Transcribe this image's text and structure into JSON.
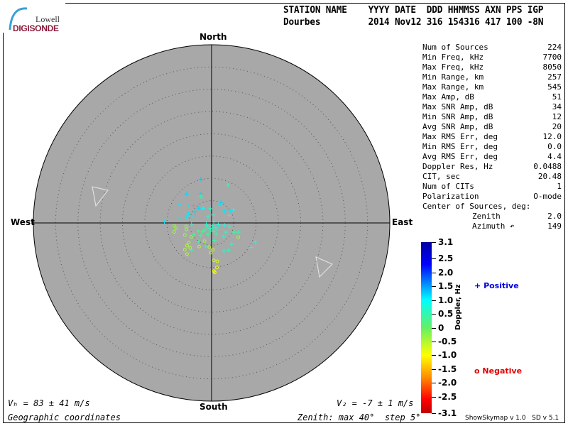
{
  "logo": {
    "line1": "Lowell",
    "line2": "DIGISONDE"
  },
  "header": {
    "labels": "STATION NAME    YYYY DATE  DDD HHMMSS AXN PPS IGP",
    "values": "Dourbes         2014 Nov12 316 154316 417 100 -8N"
  },
  "directions": {
    "north": "North",
    "south": "South",
    "east": "East",
    "west": "West"
  },
  "stats": [
    {
      "label": "Num of Sources",
      "value": "224"
    },
    {
      "label": "Min Freq, kHz",
      "value": "7700"
    },
    {
      "label": "Max Freq, kHz",
      "value": "8050"
    },
    {
      "label": "Min Range, km",
      "value": "257"
    },
    {
      "label": "Max Range, km",
      "value": "545"
    },
    {
      "label": "Max Amp, dB",
      "value": "51"
    },
    {
      "label": "Max SNR Amp, dB",
      "value": "34"
    },
    {
      "label": "Min SNR Amp, dB",
      "value": "12"
    },
    {
      "label": "Avg SNR Amp, dB",
      "value": "20"
    },
    {
      "label": "Max RMS Err, deg",
      "value": "12.0"
    },
    {
      "label": "Min RMS Err, deg",
      "value": "0.0"
    },
    {
      "label": "Avg RMS Err, deg",
      "value": "4.4"
    },
    {
      "label": "Doppler Res, Hz",
      "value": "0.0488"
    },
    {
      "label": "CIT, sec",
      "value": "20.48"
    },
    {
      "label": "Num of CITs",
      "value": "1"
    },
    {
      "label": "Polarization",
      "value": "O-mode"
    },
    {
      "label": "Center of Sources, deg:",
      "value": ""
    },
    {
      "label": "Zenith",
      "value": "2.0"
    },
    {
      "label": "Azimuth ↶",
      "value": "149"
    }
  ],
  "colorbar": {
    "title": "Doppler, Hz",
    "ticks": [
      "3.1",
      "2.5",
      "2.0",
      "1.5",
      "1.0",
      "0.5",
      "0",
      "-0.5",
      "-1.0",
      "-1.5",
      "-2.0",
      "-2.5",
      "-3.1"
    ],
    "range": [
      -3.1,
      3.1
    ]
  },
  "legend": {
    "positive": "Positive",
    "negative": "Negative",
    "positive_symbol": "+",
    "negative_symbol": "o",
    "positive_color": "#0000e0",
    "negative_color": "#e00000"
  },
  "footer": {
    "vh": "Vₕ = 83 ± 41 m/s",
    "vz": "V₂ = -7 ± 1 m/s",
    "coords": "Geographic coordinates",
    "zenith": "Zenith: max 40°  step 5°",
    "version": "ShowSkymap v 1.0   SD v 5.1"
  },
  "skymap": {
    "max_zenith_deg": 40,
    "step_deg": 5,
    "background": "#a8a8a8",
    "sources": [
      [
        -2.4,
        9.8,
        1.3,
        1
      ],
      [
        3.7,
        8.5,
        0.4,
        1
      ],
      [
        -5.6,
        6.5,
        1.2,
        1
      ],
      [
        -2.4,
        6.6,
        1.2,
        1
      ],
      [
        -2.4,
        5.9,
        0.5,
        1
      ],
      [
        -7.2,
        4.1,
        1.1,
        1
      ],
      [
        -5.1,
        3.9,
        1.1,
        1
      ],
      [
        -4.1,
        3.9,
        1.2,
        1
      ],
      [
        -2.9,
        3.3,
        1.2,
        1
      ],
      [
        -1.9,
        3.3,
        1.0,
        1
      ],
      [
        -0.3,
        3.2,
        0.6,
        1
      ],
      [
        2.1,
        4.6,
        1.2,
        1
      ],
      [
        1.9,
        4.2,
        1.1,
        1
      ],
      [
        2.9,
        2.7,
        1.1,
        1
      ],
      [
        4.3,
        2.7,
        1.1,
        1
      ],
      [
        4.9,
        2.9,
        1.0,
        1
      ],
      [
        4.0,
        1.7,
        1.0,
        1
      ],
      [
        -3.7,
        2.5,
        1.2,
        1
      ],
      [
        -5.2,
        2.0,
        1.1,
        1
      ],
      [
        -5.6,
        1.3,
        1.1,
        1
      ],
      [
        -4.1,
        1.6,
        1.1,
        1
      ],
      [
        0.4,
        1.8,
        0.9,
        1
      ],
      [
        -0.8,
        1.4,
        0.6,
        1
      ],
      [
        -7.2,
        0.9,
        1.1,
        1
      ],
      [
        -10.6,
        0.3,
        1.1,
        1
      ],
      [
        -4.5,
        -0.3,
        0.6,
        1
      ],
      [
        0.5,
        0.4,
        0.7,
        1
      ],
      [
        2.9,
        -0.5,
        0.8,
        1
      ],
      [
        4.0,
        -0.9,
        0.7,
        1
      ],
      [
        5.1,
        -2.1,
        0.4,
        1
      ],
      [
        6.1,
        -2.1,
        0.4,
        1
      ],
      [
        3.2,
        -2.1,
        0.5,
        1
      ],
      [
        2.7,
        -3.1,
        0.6,
        1
      ],
      [
        9.8,
        -4.3,
        0.9,
        1
      ],
      [
        8.9,
        -5.5,
        0.9,
        1
      ],
      [
        4.5,
        -4.8,
        0.7,
        1
      ],
      [
        3.8,
        -6.1,
        0.5,
        1
      ],
      [
        2.8,
        -6.3,
        0.8,
        1
      ],
      [
        -4.5,
        -6.1,
        0.4,
        1
      ],
      [
        -4.0,
        -2.6,
        0.3,
        1
      ],
      [
        -2.9,
        -4.1,
        0.4,
        1
      ],
      [
        0.6,
        -3.9,
        0.4,
        1
      ],
      [
        -1.3,
        -5.2,
        0.6,
        1
      ],
      [
        -1.0,
        -0.8,
        0.5,
        1
      ],
      [
        -0.5,
        -1.2,
        0.6,
        1
      ],
      [
        0.2,
        -0.6,
        0.7,
        1
      ],
      [
        0.8,
        -1.0,
        0.6,
        1
      ],
      [
        -0.2,
        -1.8,
        0.4,
        1
      ],
      [
        0.5,
        -2.0,
        0.5,
        1
      ],
      [
        1.2,
        -1.4,
        0.6,
        1
      ],
      [
        -1.5,
        -1.6,
        0.4,
        1
      ],
      [
        -2.0,
        -2.0,
        0.3,
        1
      ],
      [
        -2.5,
        -2.8,
        0.3,
        1
      ],
      [
        1.5,
        -0.4,
        0.8,
        1
      ],
      [
        -0.8,
        -2.6,
        0.4,
        1
      ],
      [
        0.1,
        -1.3,
        0.6,
        1
      ],
      [
        -1.2,
        -0.2,
        0.7,
        1
      ],
      [
        1.0,
        -2.5,
        0.5,
        1
      ],
      [
        -3.0,
        -1.8,
        0.3,
        1
      ],
      [
        -8.4,
        -0.6,
        -0.3,
        0
      ],
      [
        -8.0,
        -1.2,
        -0.4,
        0
      ],
      [
        -8.4,
        -2.0,
        -0.4,
        0
      ],
      [
        -5.7,
        -0.8,
        -0.3,
        0
      ],
      [
        -5.6,
        -1.5,
        -0.3,
        0
      ],
      [
        -6.0,
        -2.7,
        -0.4,
        0
      ],
      [
        -4.5,
        -3.1,
        -0.4,
        0
      ],
      [
        -5.1,
        -4.4,
        -0.4,
        0
      ],
      [
        -5.5,
        -5.1,
        -0.5,
        0
      ],
      [
        -4.8,
        -5.6,
        -0.5,
        0
      ],
      [
        -6.0,
        -6.0,
        -0.5,
        0
      ],
      [
        -5.5,
        -7.0,
        -0.5,
        0
      ],
      [
        -2.8,
        -5.3,
        -0.5,
        0
      ],
      [
        -1.6,
        -4.1,
        -0.4,
        0
      ],
      [
        -0.5,
        -5.4,
        -0.6,
        0
      ],
      [
        0.3,
        -6.0,
        -0.6,
        0
      ],
      [
        -0.2,
        -6.7,
        -0.6,
        0
      ],
      [
        6.0,
        -3.2,
        -0.4,
        0
      ],
      [
        0.5,
        -8.4,
        -0.8,
        0
      ],
      [
        1.3,
        -8.6,
        -0.8,
        0
      ],
      [
        1.2,
        -10.0,
        -0.9,
        0
      ],
      [
        0.5,
        -10.8,
        -1.0,
        0
      ],
      [
        0.7,
        -11.1,
        -1.0,
        0
      ]
    ]
  }
}
